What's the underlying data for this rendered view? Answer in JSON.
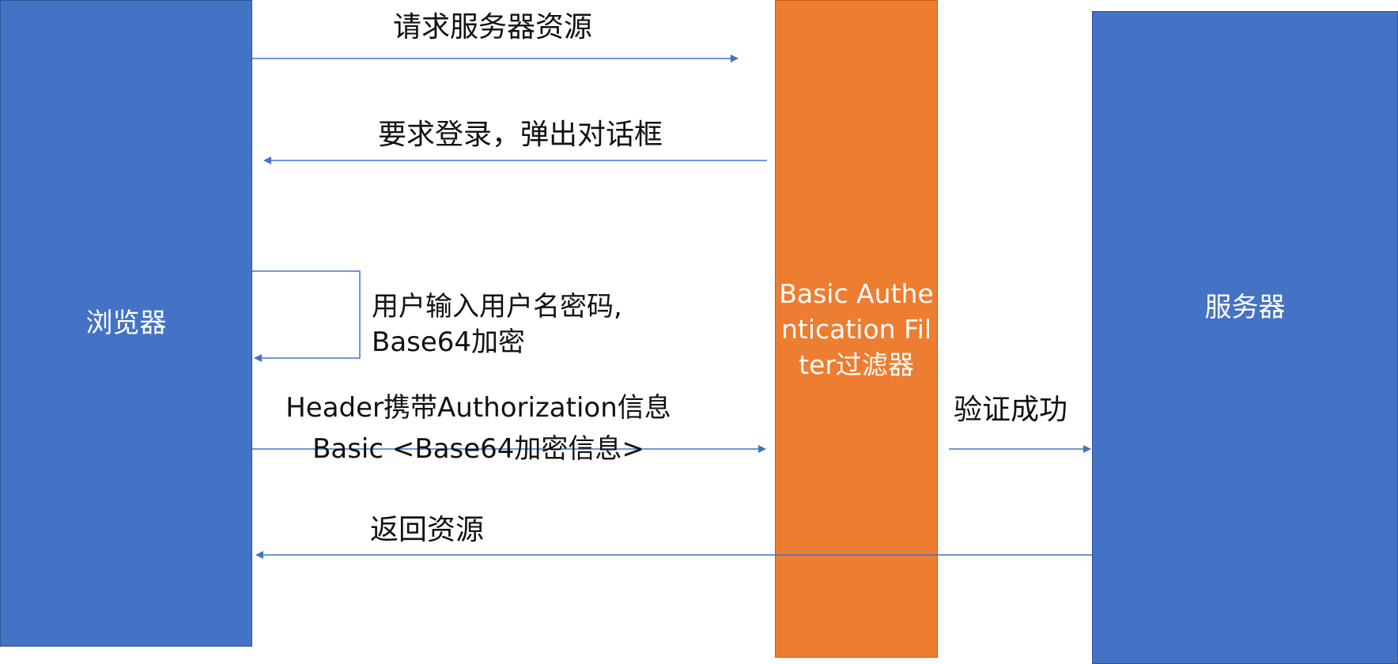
{
  "nodes": {
    "browser": "浏览器",
    "filter": "Basic Authentication Filter过滤器",
    "server": "服务器"
  },
  "messages": {
    "request_resource": "请求服务器资源",
    "require_login": "要求登录，弹出对话框",
    "user_input_line1": "用户输入用户名密码,",
    "user_input_line2": "Base64加密",
    "header_line1": "Header携带Authorization信息",
    "header_line2": "Basic <Base64加密信息>",
    "verify_success": "验证成功",
    "return_resource": "返回资源"
  },
  "colors": {
    "box_blue": "#4472c4",
    "box_orange": "#ed7d31",
    "arrow": "#4472c4"
  }
}
